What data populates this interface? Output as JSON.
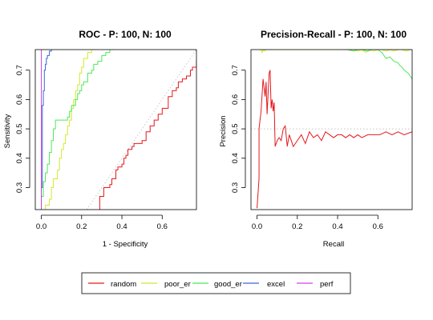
{
  "chart_data": [
    {
      "type": "line",
      "title": "ROC - P: 100, N: 100",
      "xlabel": "1 - Specificity",
      "ylabel": "Sensitivity",
      "xlim": [
        -0.03,
        0.77
      ],
      "ylim": [
        0.225,
        0.77
      ],
      "xticks": [
        0.0,
        0.2,
        0.4,
        0.6
      ],
      "xtick_labels": [
        "0.0",
        "0.2",
        "0.4",
        "0.6"
      ],
      "yticks": [
        0.3,
        0.4,
        0.5,
        0.6,
        0.7
      ],
      "ytick_labels": [
        "0.3",
        "0.4",
        "0.5",
        "0.6",
        "0.7"
      ],
      "reference_line": {
        "style": "dotted",
        "from": [
          0,
          0
        ],
        "to": [
          1,
          1
        ],
        "color": "#c8c8c8"
      },
      "series": [
        {
          "name": "random",
          "color": "#e41a1c",
          "step": true,
          "x": [
            0.29,
            0.29,
            0.31,
            0.34,
            0.35,
            0.37,
            0.38,
            0.4,
            0.41,
            0.42,
            0.43,
            0.45,
            0.46,
            0.48,
            0.5,
            0.52,
            0.54,
            0.56,
            0.58,
            0.6,
            0.62,
            0.63,
            0.65,
            0.67,
            0.68,
            0.7,
            0.72,
            0.74,
            0.75,
            0.77
          ],
          "y": [
            0.225,
            0.27,
            0.3,
            0.31,
            0.33,
            0.36,
            0.37,
            0.38,
            0.4,
            0.41,
            0.43,
            0.44,
            0.45,
            0.45,
            0.46,
            0.49,
            0.51,
            0.53,
            0.55,
            0.57,
            0.57,
            0.61,
            0.63,
            0.64,
            0.66,
            0.67,
            0.68,
            0.7,
            0.71,
            0.73
          ]
        },
        {
          "name": "poor_er",
          "color": "#d4e82b",
          "step": true,
          "x": [
            0.02,
            0.02,
            0.04,
            0.05,
            0.06,
            0.08,
            0.09,
            0.1,
            0.11,
            0.12,
            0.13,
            0.14,
            0.15,
            0.16,
            0.17,
            0.18,
            0.19,
            0.2,
            0.21,
            0.23,
            0.25,
            0.27
          ],
          "y": [
            0.225,
            0.24,
            0.26,
            0.3,
            0.33,
            0.36,
            0.4,
            0.43,
            0.45,
            0.48,
            0.51,
            0.53,
            0.57,
            0.6,
            0.63,
            0.65,
            0.69,
            0.71,
            0.74,
            0.76,
            0.77,
            0.77
          ]
        },
        {
          "name": "good_er",
          "color": "#4de85a",
          "step": true,
          "x": [
            0.0,
            0.0,
            0.01,
            0.02,
            0.03,
            0.04,
            0.05,
            0.06,
            0.07,
            0.09,
            0.11,
            0.13,
            0.14,
            0.15,
            0.17,
            0.18,
            0.19,
            0.2,
            0.21,
            0.23,
            0.25,
            0.26,
            0.28,
            0.3,
            0.32,
            0.34,
            0.36
          ],
          "y": [
            0.225,
            0.27,
            0.32,
            0.35,
            0.38,
            0.42,
            0.46,
            0.5,
            0.53,
            0.53,
            0.53,
            0.54,
            0.56,
            0.58,
            0.6,
            0.62,
            0.63,
            0.65,
            0.66,
            0.69,
            0.7,
            0.72,
            0.73,
            0.75,
            0.76,
            0.77,
            0.77
          ]
        },
        {
          "name": "excel",
          "color": "#3a66e0",
          "step": true,
          "x": [
            0.0,
            0.0,
            0.005,
            0.01,
            0.015,
            0.02,
            0.025,
            0.03,
            0.04,
            0.05
          ],
          "y": [
            0.225,
            0.3,
            0.58,
            0.63,
            0.7,
            0.72,
            0.74,
            0.75,
            0.765,
            0.77
          ]
        },
        {
          "name": "perf",
          "color": "#cc44dd",
          "step": false,
          "x": [
            0.0,
            0.0
          ],
          "y": [
            0.225,
            0.77
          ]
        }
      ]
    },
    {
      "type": "line",
      "title": "Precision-Recall - P: 100, N: 100",
      "xlabel": "Recall",
      "ylabel": "Precision",
      "xlim": [
        -0.03,
        0.77
      ],
      "ylim": [
        0.225,
        0.77
      ],
      "xticks": [
        0.0,
        0.2,
        0.4,
        0.6
      ],
      "xtick_labels": [
        "0.0",
        "0.2",
        "0.4",
        "0.6"
      ],
      "yticks": [
        0.3,
        0.4,
        0.5,
        0.6,
        0.7
      ],
      "ytick_labels": [
        "0.3",
        "0.4",
        "0.5",
        "0.6",
        "0.7"
      ],
      "reference_line": {
        "style": "dotted",
        "y": 0.5,
        "color": "#c8c8c8"
      },
      "series": [
        {
          "name": "random",
          "color": "#e41a1c",
          "step": false,
          "x": [
            0.0,
            0.01,
            0.01,
            0.02,
            0.03,
            0.04,
            0.045,
            0.05,
            0.06,
            0.065,
            0.07,
            0.075,
            0.08,
            0.085,
            0.09,
            0.1,
            0.11,
            0.12,
            0.13,
            0.14,
            0.15,
            0.16,
            0.18,
            0.2,
            0.22,
            0.24,
            0.26,
            0.28,
            0.3,
            0.32,
            0.34,
            0.36,
            0.38,
            0.4,
            0.42,
            0.44,
            0.46,
            0.48,
            0.5,
            0.52,
            0.55,
            0.58,
            0.61,
            0.64,
            0.67,
            0.7,
            0.73,
            0.77
          ],
          "y": [
            0.23,
            0.33,
            0.5,
            0.56,
            0.67,
            0.61,
            0.66,
            0.55,
            0.69,
            0.7,
            0.57,
            0.6,
            0.56,
            0.59,
            0.44,
            0.46,
            0.47,
            0.46,
            0.5,
            0.51,
            0.44,
            0.48,
            0.44,
            0.46,
            0.48,
            0.45,
            0.49,
            0.47,
            0.48,
            0.46,
            0.49,
            0.48,
            0.47,
            0.48,
            0.48,
            0.47,
            0.48,
            0.47,
            0.48,
            0.47,
            0.48,
            0.48,
            0.48,
            0.49,
            0.48,
            0.49,
            0.48,
            0.49
          ]
        },
        {
          "name": "poor_er",
          "color": "#d4e82b",
          "step": false,
          "x": [
            0.02,
            0.025,
            0.03,
            0.035,
            0.045,
            0.05,
            0.48,
            0.5,
            0.52,
            0.54,
            0.56,
            0.58,
            0.6,
            0.62,
            0.64,
            0.66,
            0.68,
            0.7,
            0.72,
            0.74,
            0.76,
            0.77
          ],
          "y": [
            0.77,
            0.76,
            0.77,
            0.765,
            0.77,
            0.77,
            0.77,
            0.765,
            0.77,
            0.76,
            0.77,
            0.765,
            0.77,
            0.77,
            0.765,
            0.77,
            0.765,
            0.77,
            0.77,
            0.765,
            0.77,
            0.77
          ]
        },
        {
          "name": "good_er",
          "color": "#4de85a",
          "step": false,
          "x": [
            0.43,
            0.45,
            0.48,
            0.5,
            0.52,
            0.55,
            0.57,
            0.6,
            0.62,
            0.64,
            0.66,
            0.68,
            0.7,
            0.71,
            0.72,
            0.73,
            0.74,
            0.75,
            0.76,
            0.77
          ],
          "y": [
            0.77,
            0.77,
            0.765,
            0.77,
            0.77,
            0.765,
            0.77,
            0.77,
            0.76,
            0.74,
            0.745,
            0.73,
            0.725,
            0.715,
            0.71,
            0.7,
            0.695,
            0.69,
            0.68,
            0.67
          ]
        },
        {
          "name": "excel",
          "color": "#3a66e0",
          "step": false,
          "x": [],
          "y": []
        },
        {
          "name": "perf",
          "color": "#cc44dd",
          "step": false,
          "x": [],
          "y": []
        }
      ]
    }
  ],
  "legend": {
    "placement": "bottom-center",
    "items": [
      {
        "label": "random",
        "color": "#e41a1c"
      },
      {
        "label": "poor_er",
        "color": "#d4e82b"
      },
      {
        "label": "good_er",
        "color": "#4de85a"
      },
      {
        "label": "excel",
        "color": "#3a66e0"
      },
      {
        "label": "perf",
        "color": "#cc44dd"
      }
    ]
  }
}
